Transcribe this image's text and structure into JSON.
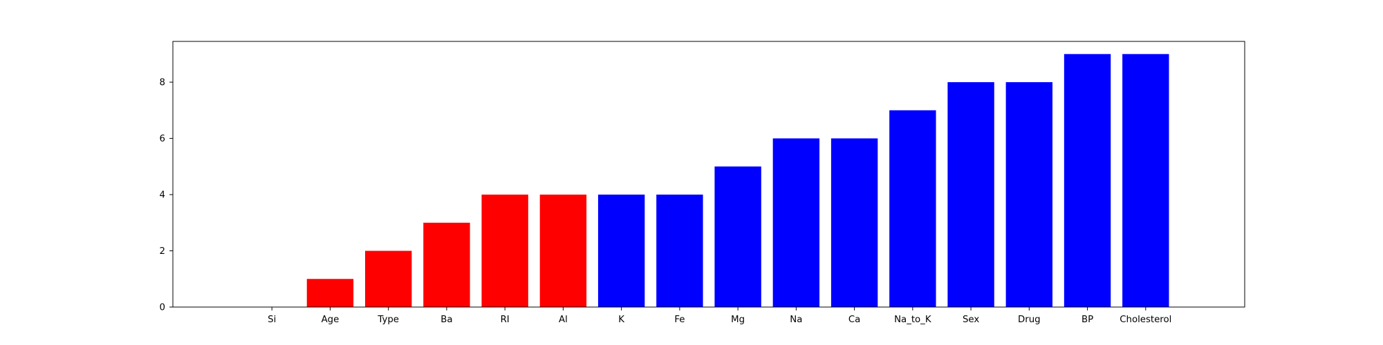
{
  "chart_data": {
    "type": "bar",
    "title": "",
    "xlabel": "",
    "ylabel": "",
    "categories": [
      "Si",
      "Age",
      "Type",
      "Ba",
      "RI",
      "Al",
      "K",
      "Fe",
      "Mg",
      "Na",
      "Ca",
      "Na_to_K",
      "Sex",
      "Drug",
      "BP",
      "Cholesterol"
    ],
    "values": [
      0,
      1,
      2,
      3,
      4,
      4,
      4,
      4,
      5,
      6,
      6,
      7,
      8,
      8,
      9,
      9
    ],
    "bar_colors": [
      "#ff0000",
      "#ff0000",
      "#ff0000",
      "#ff0000",
      "#ff0000",
      "#ff0000",
      "#0000ff",
      "#0000ff",
      "#0000ff",
      "#0000ff",
      "#0000ff",
      "#0000ff",
      "#0000ff",
      "#0000ff",
      "#0000ff",
      "#0000ff"
    ],
    "ylim": [
      0,
      9.45
    ],
    "yticks": [
      0,
      2,
      4,
      6,
      8
    ],
    "grid": false,
    "legend": "none"
  }
}
